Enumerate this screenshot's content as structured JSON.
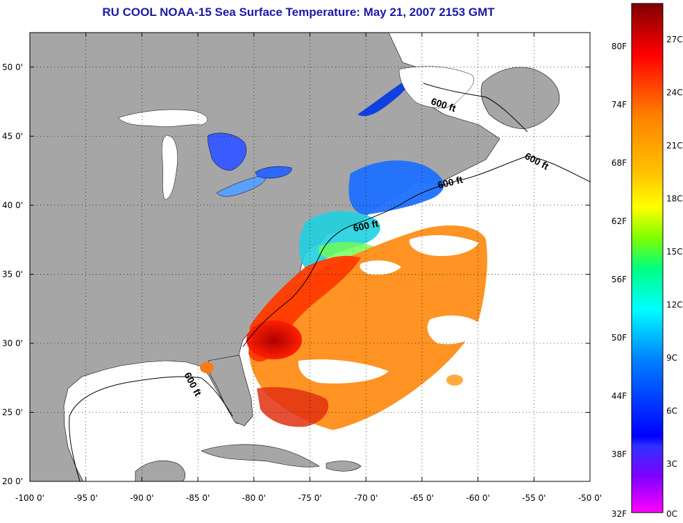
{
  "title": "RU COOL  NOAA-15  Sea Surface Temperature:  May 21, 2007 2153 GMT",
  "map": {
    "lat_ticks": [
      {
        "value": 50,
        "label": "50 0'"
      },
      {
        "value": 45,
        "label": "45 0'"
      },
      {
        "value": 40,
        "label": "40 0'"
      },
      {
        "value": 35,
        "label": "35 0'"
      },
      {
        "value": 30,
        "label": "30 0'"
      },
      {
        "value": 25,
        "label": "25 0'"
      },
      {
        "value": 20,
        "label": "20 0'"
      }
    ],
    "lon_ticks": [
      {
        "value": -100,
        "label": "-100 0'"
      },
      {
        "value": -95,
        "label": "-95 0'"
      },
      {
        "value": -90,
        "label": "-90 0'"
      },
      {
        "value": -85,
        "label": "-85 0'"
      },
      {
        "value": -80,
        "label": "-80 0'"
      },
      {
        "value": -75,
        "label": "-75 0'"
      },
      {
        "value": -70,
        "label": "-70 0'"
      },
      {
        "value": -65,
        "label": "-65 0'"
      },
      {
        "value": -60,
        "label": "-60 0'"
      },
      {
        "value": -55,
        "label": "-55 0'"
      },
      {
        "value": -50,
        "label": "-50 0'"
      }
    ],
    "lat_range": [
      20,
      52.5
    ],
    "lon_range": [
      -100,
      -50
    ],
    "depth_contour_labels": [
      "600 ft",
      "600 ft",
      "600 ft",
      "600 ft",
      "600 ft"
    ],
    "land_color": "#a6a6a6",
    "no_data_color": "#ffffff"
  },
  "colorbar": {
    "fahrenheit_labels": [
      "80F",
      "74F",
      "68F",
      "62F",
      "56F",
      "50F",
      "44F",
      "38F",
      "32F"
    ],
    "celsius_labels": [
      "27C",
      "24C",
      "21C",
      "18C",
      "15C",
      "12C",
      "9C",
      "6C",
      "3C",
      "0C"
    ],
    "stops": [
      "#800000",
      "#ff0000",
      "#ff8000",
      "#ffff00",
      "#80ff00",
      "#00ff80",
      "#00ffff",
      "#0080ff",
      "#0000ff",
      "#8000ff",
      "#ff00ff"
    ]
  }
}
